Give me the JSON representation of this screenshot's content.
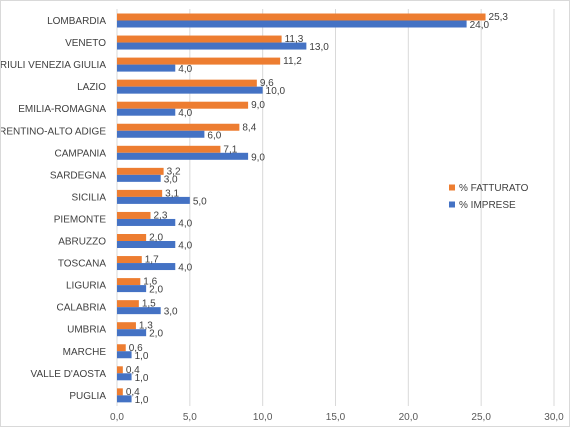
{
  "chart_data": {
    "type": "bar",
    "orientation": "horizontal",
    "categories": [
      "LOMBARDIA",
      "VENETO",
      "FRIULI VENEZIA GIULIA",
      "LAZIO",
      "EMILIA-ROMAGNA",
      "TRENTINO-ALTO ADIGE",
      "CAMPANIA",
      "SARDEGNA",
      "SICILIA",
      "PIEMONTE",
      "ABRUZZO",
      "TOSCANA",
      "LIGURIA",
      "CALABRIA",
      "UMBRIA",
      "MARCHE",
      "VALLE D'AOSTA",
      "PUGLIA"
    ],
    "series": [
      {
        "name": "% FATTURATO",
        "color": "#ED7D31",
        "values": [
          25.3,
          11.3,
          11.2,
          9.6,
          9.0,
          8.4,
          7.1,
          3.2,
          3.1,
          2.3,
          2.0,
          1.7,
          1.6,
          1.5,
          1.3,
          0.6,
          0.4,
          0.4
        ],
        "labels": [
          "25,3",
          "11,3",
          "11,2",
          "9,6",
          "9,0",
          "8,4",
          "7,1",
          "3,2",
          "3,1",
          "2,3",
          "2,0",
          "1,7",
          "1,6",
          "1,5",
          "1,3",
          "0,6",
          "0,4",
          "0,4"
        ]
      },
      {
        "name": "% IMPRESE",
        "color": "#4472C4",
        "values": [
          24.0,
          13.0,
          4.0,
          10.0,
          4.0,
          6.0,
          9.0,
          3.0,
          5.0,
          4.0,
          4.0,
          4.0,
          2.0,
          3.0,
          2.0,
          1.0,
          1.0,
          1.0
        ],
        "labels": [
          "24,0",
          "13,0",
          "4,0",
          "10,0",
          "4,0",
          "6,0",
          "9,0",
          "3,0",
          "5,0",
          "4,0",
          "4,0",
          "4,0",
          "2,0",
          "3,0",
          "2,0",
          "1,0",
          "1,0",
          "1,0"
        ]
      }
    ],
    "xlim": [
      0,
      30
    ],
    "xticks": [
      "0,0",
      "5,0",
      "10,0",
      "15,0",
      "20,0",
      "25,0",
      "30,0"
    ],
    "grid": true,
    "legend": "right"
  }
}
